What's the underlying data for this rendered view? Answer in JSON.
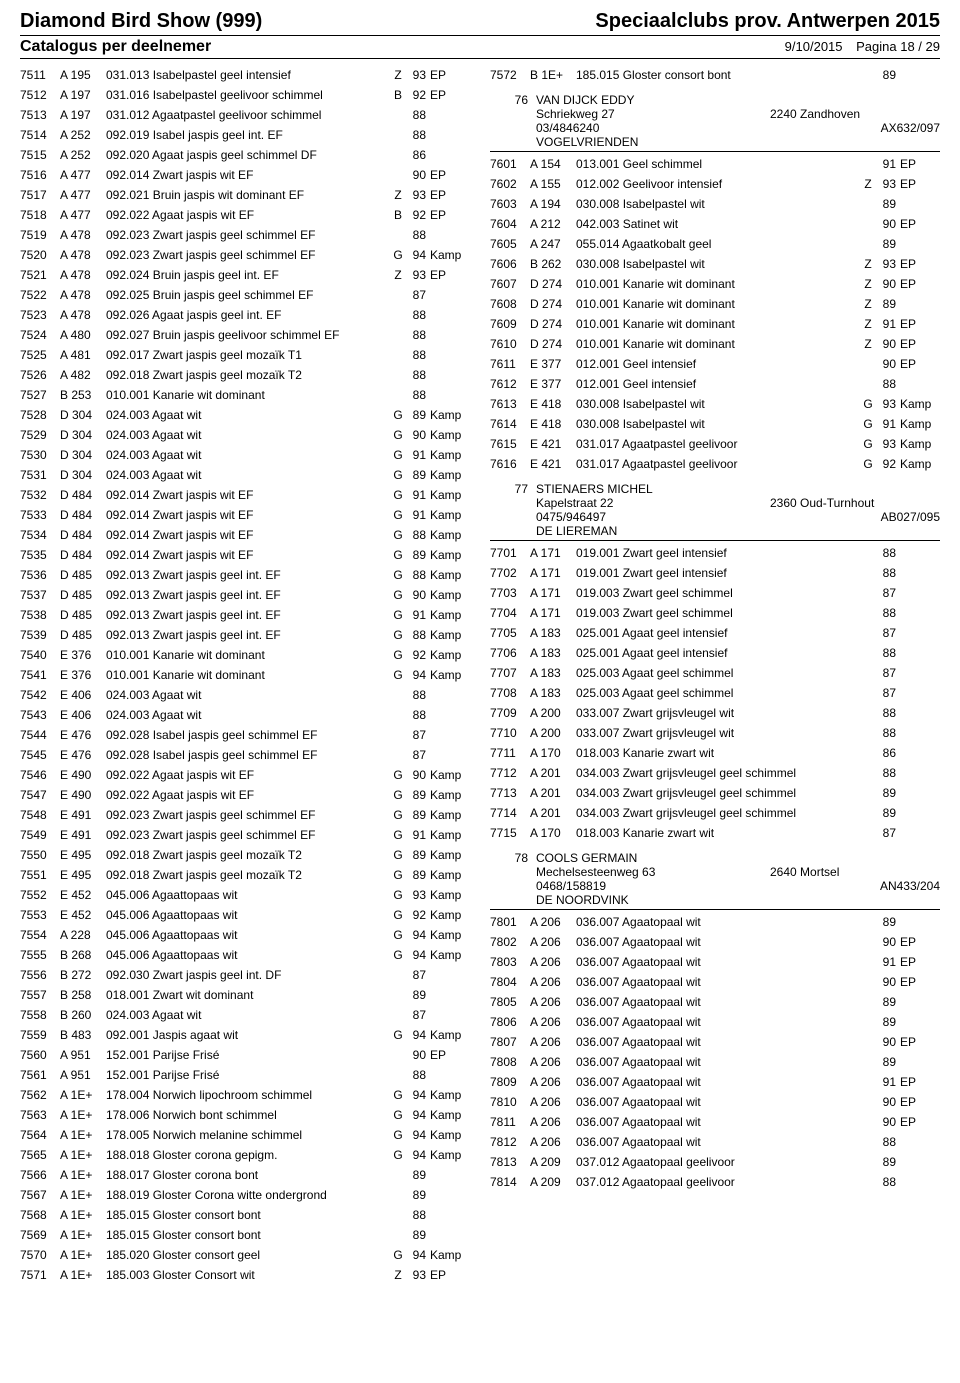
{
  "header": {
    "left": "Diamond Bird Show (999)",
    "right": "Speciaalclubs prov. Antwerpen 2015",
    "subtitle": "Catalogus per deelnemer",
    "date": "9/10/2015",
    "page": "Pagina 18 / 29"
  },
  "left_entries": [
    {
      "id": "7511",
      "ring": "A 195",
      "desc": "031.013 Isabelpastel geel intensief",
      "let": "Z",
      "score": "93",
      "award": "EP"
    },
    {
      "id": "7512",
      "ring": "A 197",
      "desc": "031.016 Isabelpastel geelivoor schimmel",
      "let": "B",
      "score": "92",
      "award": "EP"
    },
    {
      "id": "7513",
      "ring": "A 197",
      "desc": "031.012 Agaatpastel geelivoor schimmel",
      "let": "",
      "score": "88",
      "award": ""
    },
    {
      "id": "7514",
      "ring": "A 252",
      "desc": "092.019 Isabel jaspis geel int. EF",
      "let": "",
      "score": "88",
      "award": ""
    },
    {
      "id": "7515",
      "ring": "A 252",
      "desc": "092.020 Agaat jaspis geel schimmel DF",
      "let": "",
      "score": "86",
      "award": ""
    },
    {
      "id": "7516",
      "ring": "A 477",
      "desc": "092.014 Zwart jaspis wit EF",
      "let": "",
      "score": "90",
      "award": "EP"
    },
    {
      "id": "7517",
      "ring": "A 477",
      "desc": "092.021 Bruin jaspis wit dominant EF",
      "let": "Z",
      "score": "93",
      "award": "EP"
    },
    {
      "id": "7518",
      "ring": "A 477",
      "desc": "092.022 Agaat jaspis wit EF",
      "let": "B",
      "score": "92",
      "award": "EP"
    },
    {
      "id": "7519",
      "ring": "A 478",
      "desc": "092.023 Zwart jaspis geel schimmel EF",
      "let": "",
      "score": "88",
      "award": ""
    },
    {
      "id": "7520",
      "ring": "A 478",
      "desc": "092.023 Zwart jaspis geel schimmel EF",
      "let": "G",
      "score": "94",
      "award": "Kamp"
    },
    {
      "id": "7521",
      "ring": "A 478",
      "desc": "092.024 Bruin jaspis geel int. EF",
      "let": "Z",
      "score": "93",
      "award": "EP"
    },
    {
      "id": "7522",
      "ring": "A 478",
      "desc": "092.025 Bruin jaspis geel schimmel EF",
      "let": "",
      "score": "87",
      "award": ""
    },
    {
      "id": "7523",
      "ring": "A 478",
      "desc": "092.026 Agaat jaspis geel int. EF",
      "let": "",
      "score": "88",
      "award": ""
    },
    {
      "id": "7524",
      "ring": "A 480",
      "desc": "092.027 Bruin jaspis geelivoor schimmel EF",
      "let": "",
      "score": "88",
      "award": ""
    },
    {
      "id": "7525",
      "ring": "A 481",
      "desc": "092.017 Zwart jaspis geel mozaïk T1",
      "let": "",
      "score": "88",
      "award": ""
    },
    {
      "id": "7526",
      "ring": "A 482",
      "desc": "092.018 Zwart jaspis geel mozaïk T2",
      "let": "",
      "score": "88",
      "award": ""
    },
    {
      "id": "7527",
      "ring": "B 253",
      "desc": "010.001 Kanarie wit dominant",
      "let": "",
      "score": "88",
      "award": ""
    },
    {
      "id": "7528",
      "ring": "D 304",
      "desc": "024.003 Agaat wit",
      "let": "G",
      "score": "89",
      "award": "Kamp"
    },
    {
      "id": "7529",
      "ring": "D 304",
      "desc": "024.003 Agaat wit",
      "let": "G",
      "score": "90",
      "award": "Kamp"
    },
    {
      "id": "7530",
      "ring": "D 304",
      "desc": "024.003 Agaat wit",
      "let": "G",
      "score": "91",
      "award": "Kamp"
    },
    {
      "id": "7531",
      "ring": "D 304",
      "desc": "024.003 Agaat wit",
      "let": "G",
      "score": "89",
      "award": "Kamp"
    },
    {
      "id": "7532",
      "ring": "D 484",
      "desc": "092.014 Zwart jaspis wit EF",
      "let": "G",
      "score": "91",
      "award": "Kamp"
    },
    {
      "id": "7533",
      "ring": "D 484",
      "desc": "092.014 Zwart jaspis wit EF",
      "let": "G",
      "score": "91",
      "award": "Kamp"
    },
    {
      "id": "7534",
      "ring": "D 484",
      "desc": "092.014 Zwart jaspis wit EF",
      "let": "G",
      "score": "88",
      "award": "Kamp"
    },
    {
      "id": "7535",
      "ring": "D 484",
      "desc": "092.014 Zwart jaspis wit EF",
      "let": "G",
      "score": "89",
      "award": "Kamp"
    },
    {
      "id": "7536",
      "ring": "D 485",
      "desc": "092.013 Zwart jaspis geel int. EF",
      "let": "G",
      "score": "88",
      "award": "Kamp"
    },
    {
      "id": "7537",
      "ring": "D 485",
      "desc": "092.013 Zwart jaspis geel int. EF",
      "let": "G",
      "score": "90",
      "award": "Kamp"
    },
    {
      "id": "7538",
      "ring": "D 485",
      "desc": "092.013 Zwart jaspis geel int. EF",
      "let": "G",
      "score": "91",
      "award": "Kamp"
    },
    {
      "id": "7539",
      "ring": "D 485",
      "desc": "092.013 Zwart jaspis geel int. EF",
      "let": "G",
      "score": "88",
      "award": "Kamp"
    },
    {
      "id": "7540",
      "ring": "E 376",
      "desc": "010.001 Kanarie wit dominant",
      "let": "G",
      "score": "92",
      "award": "Kamp"
    },
    {
      "id": "7541",
      "ring": "E 376",
      "desc": "010.001 Kanarie wit dominant",
      "let": "G",
      "score": "94",
      "award": "Kamp"
    },
    {
      "id": "7542",
      "ring": "E 406",
      "desc": "024.003 Agaat wit",
      "let": "",
      "score": "88",
      "award": ""
    },
    {
      "id": "7543",
      "ring": "E 406",
      "desc": "024.003 Agaat wit",
      "let": "",
      "score": "88",
      "award": ""
    },
    {
      "id": "7544",
      "ring": "E 476",
      "desc": "092.028 Isabel jaspis geel schimmel EF",
      "let": "",
      "score": "87",
      "award": ""
    },
    {
      "id": "7545",
      "ring": "E 476",
      "desc": "092.028 Isabel jaspis geel schimmel EF",
      "let": "",
      "score": "87",
      "award": ""
    },
    {
      "id": "7546",
      "ring": "E 490",
      "desc": "092.022 Agaat jaspis wit EF",
      "let": "G",
      "score": "90",
      "award": "Kamp"
    },
    {
      "id": "7547",
      "ring": "E 490",
      "desc": "092.022 Agaat jaspis wit EF",
      "let": "G",
      "score": "89",
      "award": "Kamp"
    },
    {
      "id": "7548",
      "ring": "E 491",
      "desc": "092.023 Zwart jaspis geel schimmel EF",
      "let": "G",
      "score": "89",
      "award": "Kamp"
    },
    {
      "id": "7549",
      "ring": "E 491",
      "desc": "092.023 Zwart jaspis geel schimmel EF",
      "let": "G",
      "score": "91",
      "award": "Kamp"
    },
    {
      "id": "7550",
      "ring": "E 495",
      "desc": "092.018 Zwart jaspis geel mozaïk T2",
      "let": "G",
      "score": "89",
      "award": "Kamp"
    },
    {
      "id": "7551",
      "ring": "E 495",
      "desc": "092.018 Zwart jaspis geel mozaïk T2",
      "let": "G",
      "score": "89",
      "award": "Kamp"
    },
    {
      "id": "7552",
      "ring": "E 452",
      "desc": "045.006 Agaattopaas wit",
      "let": "G",
      "score": "93",
      "award": "Kamp"
    },
    {
      "id": "7553",
      "ring": "E 452",
      "desc": "045.006 Agaattopaas wit",
      "let": "G",
      "score": "92",
      "award": "Kamp"
    },
    {
      "id": "7554",
      "ring": "A 228",
      "desc": "045.006 Agaattopaas wit",
      "let": "G",
      "score": "94",
      "award": "Kamp"
    },
    {
      "id": "7555",
      "ring": "B 268",
      "desc": "045.006 Agaattopaas wit",
      "let": "G",
      "score": "94",
      "award": "Kamp"
    },
    {
      "id": "7556",
      "ring": "B 272",
      "desc": "092.030 Zwart jaspis geel int. DF",
      "let": "",
      "score": "87",
      "award": ""
    },
    {
      "id": "7557",
      "ring": "B 258",
      "desc": "018.001 Zwart wit dominant",
      "let": "",
      "score": "89",
      "award": ""
    },
    {
      "id": "7558",
      "ring": "B 260",
      "desc": "024.003 Agaat wit",
      "let": "",
      "score": "87",
      "award": ""
    },
    {
      "id": "7559",
      "ring": "B 483",
      "desc": "092.001 Jaspis agaat wit",
      "let": "G",
      "score": "94",
      "award": "Kamp"
    },
    {
      "id": "7560",
      "ring": "A 951",
      "desc": "152.001 Parijse Frisé",
      "let": "",
      "score": "90",
      "award": "EP"
    },
    {
      "id": "7561",
      "ring": "A 951",
      "desc": "152.001 Parijse Frisé",
      "let": "",
      "score": "88",
      "award": ""
    },
    {
      "id": "7562",
      "ring": "A 1E+",
      "desc": "178.004 Norwich lipochroom schimmel",
      "let": "G",
      "score": "94",
      "award": "Kamp"
    },
    {
      "id": "7563",
      "ring": "A 1E+",
      "desc": "178.006 Norwich bont schimmel",
      "let": "G",
      "score": "94",
      "award": "Kamp"
    },
    {
      "id": "7564",
      "ring": "A 1E+",
      "desc": "178.005 Norwich melanine schimmel",
      "let": "G",
      "score": "94",
      "award": "Kamp"
    },
    {
      "id": "7565",
      "ring": "A 1E+",
      "desc": "188.018 Gloster corona gepigm.",
      "let": "G",
      "score": "94",
      "award": "Kamp"
    },
    {
      "id": "7566",
      "ring": "A 1E+",
      "desc": "188.017 Gloster corona bont",
      "let": "",
      "score": "89",
      "award": ""
    },
    {
      "id": "7567",
      "ring": "A 1E+",
      "desc": "188.019 Gloster Corona witte ondergrond",
      "let": "",
      "score": "89",
      "award": ""
    },
    {
      "id": "7568",
      "ring": "A 1E+",
      "desc": "185.015 Gloster consort bont",
      "let": "",
      "score": "88",
      "award": ""
    },
    {
      "id": "7569",
      "ring": "A 1E+",
      "desc": "185.015 Gloster consort bont",
      "let": "",
      "score": "89",
      "award": ""
    },
    {
      "id": "7570",
      "ring": "A 1E+",
      "desc": "185.020 Gloster consort geel",
      "let": "G",
      "score": "94",
      "award": "Kamp"
    },
    {
      "id": "7571",
      "ring": "A 1E+",
      "desc": "185.003 Gloster Consort wit",
      "let": "Z",
      "score": "93",
      "award": "EP"
    }
  ],
  "right_blocks": [
    {
      "type": "entries",
      "rows": [
        {
          "id": "7572",
          "ring": "B 1E+",
          "desc": "185.015 Gloster consort bont",
          "let": "",
          "score": "89",
          "award": ""
        }
      ]
    },
    {
      "type": "exhibitor",
      "num": "76",
      "name": "VAN DIJCK EDDY",
      "addr": "Schriekweg 27",
      "city": "2240 Zandhoven",
      "phone": "03/4846240",
      "code": "AX632/097",
      "club": "VOGELVRIENDEN"
    },
    {
      "type": "entries",
      "rows": [
        {
          "id": "7601",
          "ring": "A 154",
          "desc": "013.001 Geel schimmel",
          "let": "",
          "score": "91",
          "award": "EP"
        },
        {
          "id": "7602",
          "ring": "A 155",
          "desc": "012.002 Geelivoor intensief",
          "let": "Z",
          "score": "93",
          "award": "EP"
        },
        {
          "id": "7603",
          "ring": "A 194",
          "desc": "030.008 Isabelpastel wit",
          "let": "",
          "score": "89",
          "award": ""
        },
        {
          "id": "7604",
          "ring": "A 212",
          "desc": "042.003 Satinet wit",
          "let": "",
          "score": "90",
          "award": "EP"
        },
        {
          "id": "7605",
          "ring": "A 247",
          "desc": "055.014 Agaatkobalt geel",
          "let": "",
          "score": "89",
          "award": ""
        },
        {
          "id": "7606",
          "ring": "B 262",
          "desc": "030.008 Isabelpastel wit",
          "let": "Z",
          "score": "93",
          "award": "EP"
        },
        {
          "id": "7607",
          "ring": "D 274",
          "desc": "010.001 Kanarie wit dominant",
          "let": "Z",
          "score": "90",
          "award": "EP"
        },
        {
          "id": "7608",
          "ring": "D 274",
          "desc": "010.001 Kanarie wit dominant",
          "let": "Z",
          "score": "89",
          "award": ""
        },
        {
          "id": "7609",
          "ring": "D 274",
          "desc": "010.001 Kanarie wit dominant",
          "let": "Z",
          "score": "91",
          "award": "EP"
        },
        {
          "id": "7610",
          "ring": "D 274",
          "desc": "010.001 Kanarie wit dominant",
          "let": "Z",
          "score": "90",
          "award": "EP"
        },
        {
          "id": "7611",
          "ring": "E 377",
          "desc": "012.001 Geel intensief",
          "let": "",
          "score": "90",
          "award": "EP"
        },
        {
          "id": "7612",
          "ring": "E 377",
          "desc": "012.001 Geel intensief",
          "let": "",
          "score": "88",
          "award": ""
        },
        {
          "id": "7613",
          "ring": "E 418",
          "desc": "030.008 Isabelpastel wit",
          "let": "G",
          "score": "93",
          "award": "Kamp"
        },
        {
          "id": "7614",
          "ring": "E 418",
          "desc": "030.008 Isabelpastel wit",
          "let": "G",
          "score": "91",
          "award": "Kamp"
        },
        {
          "id": "7615",
          "ring": "E 421",
          "desc": "031.017 Agaatpastel geelivoor",
          "let": "G",
          "score": "93",
          "award": "Kamp"
        },
        {
          "id": "7616",
          "ring": "E 421",
          "desc": "031.017 Agaatpastel geelivoor",
          "let": "G",
          "score": "92",
          "award": "Kamp"
        }
      ]
    },
    {
      "type": "exhibitor",
      "num": "77",
      "name": "STIENAERS MICHEL",
      "addr": "Kapelstraat 22",
      "city": "2360 Oud-Turnhout",
      "phone": "0475/946497",
      "code": "AB027/095",
      "club": "DE LIEREMAN"
    },
    {
      "type": "entries",
      "rows": [
        {
          "id": "7701",
          "ring": "A 171",
          "desc": "019.001 Zwart geel intensief",
          "let": "",
          "score": "88",
          "award": ""
        },
        {
          "id": "7702",
          "ring": "A 171",
          "desc": "019.001 Zwart geel intensief",
          "let": "",
          "score": "88",
          "award": ""
        },
        {
          "id": "7703",
          "ring": "A 171",
          "desc": "019.003 Zwart geel schimmel",
          "let": "",
          "score": "87",
          "award": ""
        },
        {
          "id": "7704",
          "ring": "A 171",
          "desc": "019.003 Zwart geel schimmel",
          "let": "",
          "score": "88",
          "award": ""
        },
        {
          "id": "7705",
          "ring": "A 183",
          "desc": "025.001 Agaat geel intensief",
          "let": "",
          "score": "87",
          "award": ""
        },
        {
          "id": "7706",
          "ring": "A 183",
          "desc": "025.001 Agaat geel intensief",
          "let": "",
          "score": "88",
          "award": ""
        },
        {
          "id": "7707",
          "ring": "A 183",
          "desc": "025.003 Agaat geel schimmel",
          "let": "",
          "score": "87",
          "award": ""
        },
        {
          "id": "7708",
          "ring": "A 183",
          "desc": "025.003 Agaat geel schimmel",
          "let": "",
          "score": "87",
          "award": ""
        },
        {
          "id": "7709",
          "ring": "A 200",
          "desc": "033.007 Zwart grijsvleugel wit",
          "let": "",
          "score": "88",
          "award": ""
        },
        {
          "id": "7710",
          "ring": "A 200",
          "desc": "033.007 Zwart grijsvleugel wit",
          "let": "",
          "score": "88",
          "award": ""
        },
        {
          "id": "7711",
          "ring": "A 170",
          "desc": "018.003 Kanarie zwart wit",
          "let": "",
          "score": "86",
          "award": ""
        },
        {
          "id": "7712",
          "ring": "A 201",
          "desc": "034.003 Zwart grijsvleugel geel schimmel",
          "let": "",
          "score": "88",
          "award": ""
        },
        {
          "id": "7713",
          "ring": "A 201",
          "desc": "034.003 Zwart grijsvleugel geel schimmel",
          "let": "",
          "score": "89",
          "award": ""
        },
        {
          "id": "7714",
          "ring": "A 201",
          "desc": "034.003 Zwart grijsvleugel geel schimmel",
          "let": "",
          "score": "89",
          "award": ""
        },
        {
          "id": "7715",
          "ring": "A 170",
          "desc": "018.003 Kanarie zwart wit",
          "let": "",
          "score": "87",
          "award": ""
        }
      ]
    },
    {
      "type": "exhibitor",
      "num": "78",
      "name": "COOLS GERMAIN",
      "addr": "Mechelsesteenweg 63",
      "city": "2640 Mortsel",
      "phone": "0468/158819",
      "code": "AN433/204",
      "club": "DE NOORDVINK"
    },
    {
      "type": "entries",
      "rows": [
        {
          "id": "7801",
          "ring": "A 206",
          "desc": "036.007 Agaatopaal wit",
          "let": "",
          "score": "89",
          "award": ""
        },
        {
          "id": "7802",
          "ring": "A 206",
          "desc": "036.007 Agaatopaal wit",
          "let": "",
          "score": "90",
          "award": "EP"
        },
        {
          "id": "7803",
          "ring": "A 206",
          "desc": "036.007 Agaatopaal wit",
          "let": "",
          "score": "91",
          "award": "EP"
        },
        {
          "id": "7804",
          "ring": "A 206",
          "desc": "036.007 Agaatopaal wit",
          "let": "",
          "score": "90",
          "award": "EP"
        },
        {
          "id": "7805",
          "ring": "A 206",
          "desc": "036.007 Agaatopaal wit",
          "let": "",
          "score": "89",
          "award": ""
        },
        {
          "id": "7806",
          "ring": "A 206",
          "desc": "036.007 Agaatopaal wit",
          "let": "",
          "score": "89",
          "award": ""
        },
        {
          "id": "7807",
          "ring": "A 206",
          "desc": "036.007 Agaatopaal wit",
          "let": "",
          "score": "90",
          "award": "EP"
        },
        {
          "id": "7808",
          "ring": "A 206",
          "desc": "036.007 Agaatopaal wit",
          "let": "",
          "score": "89",
          "award": ""
        },
        {
          "id": "7809",
          "ring": "A 206",
          "desc": "036.007 Agaatopaal wit",
          "let": "",
          "score": "91",
          "award": "EP"
        },
        {
          "id": "7810",
          "ring": "A 206",
          "desc": "036.007 Agaatopaal wit",
          "let": "",
          "score": "90",
          "award": "EP"
        },
        {
          "id": "7811",
          "ring": "A 206",
          "desc": "036.007 Agaatopaal wit",
          "let": "",
          "score": "90",
          "award": "EP"
        },
        {
          "id": "7812",
          "ring": "A 206",
          "desc": "036.007 Agaatopaal wit",
          "let": "",
          "score": "88",
          "award": ""
        },
        {
          "id": "7813",
          "ring": "A 209",
          "desc": "037.012 Agaatopaal geelivoor",
          "let": "",
          "score": "89",
          "award": ""
        },
        {
          "id": "7814",
          "ring": "A 209",
          "desc": "037.012 Agaatopaal geelivoor",
          "let": "",
          "score": "88",
          "award": ""
        }
      ]
    }
  ]
}
